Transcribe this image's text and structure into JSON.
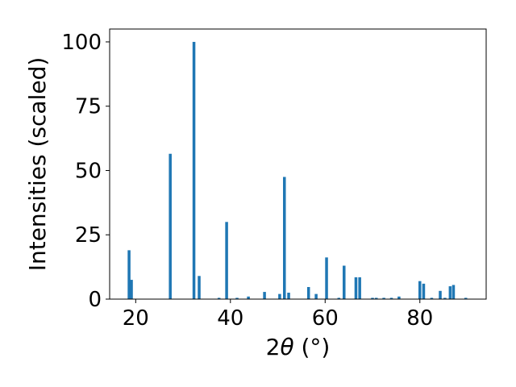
{
  "chart_data": {
    "type": "bar",
    "xlabel": {
      "prefix": "2",
      "symbol": "θ",
      "suffix": " (°)"
    },
    "ylabel": "Intensities (scaled)",
    "xlim": [
      14.5,
      94.0
    ],
    "ylim": [
      0,
      105
    ],
    "xticks": [
      20,
      40,
      60,
      80
    ],
    "yticks": [
      0,
      25,
      50,
      75,
      100
    ],
    "bar_width": 0.6,
    "bar_color": "#1f77b4",
    "grid": false,
    "x": [
      18.6,
      19.1,
      27.3,
      32.3,
      33.4,
      37.6,
      39.2,
      41.4,
      43.8,
      47.2,
      50.4,
      51.4,
      52.3,
      56.5,
      58.1,
      60.3,
      62.9,
      64.0,
      66.5,
      67.3,
      70.0,
      70.8,
      72.4,
      74.0,
      75.6,
      80.0,
      80.8,
      82.5,
      84.3,
      85.3,
      86.4,
      87.1,
      89.7
    ],
    "y": [
      19,
      7.5,
      56.5,
      100,
      9,
      0.5,
      30,
      0.5,
      1,
      2.8,
      2,
      47.5,
      2.5,
      4.7,
      2,
      16.2,
      0.5,
      13,
      8.5,
      8.5,
      0.5,
      0.5,
      0.5,
      0.5,
      1,
      7,
      6,
      0.5,
      3.2,
      0.5,
      5,
      5.5,
      0.5
    ]
  }
}
